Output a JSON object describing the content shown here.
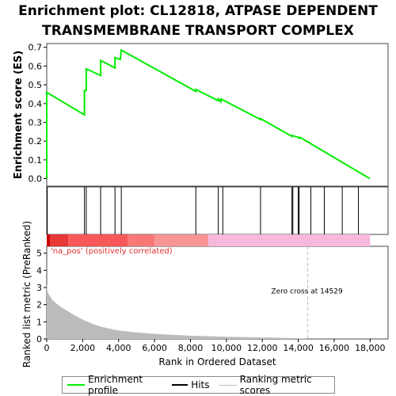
{
  "title_lines": [
    "Enrichment plot: CL12818, ATPASE DEPENDENT",
    "TRANSMEMBRANE TRANSPORT COMPLEX"
  ],
  "colors": {
    "es_line": "#00ee00",
    "hits": "#000000",
    "metric_fill": "#bbbbbb",
    "pos_label": "#e03030",
    "zero_cross_line": "#bbbbbb"
  },
  "chart_data": [
    {
      "type": "line",
      "name": "enrichment-profile",
      "ylabel": "Enrichment score (ES)",
      "xlim": [
        0,
        19000
      ],
      "ylim": [
        -0.04,
        0.72
      ],
      "yticks": [
        0.0,
        0.1,
        0.2,
        0.3,
        0.4,
        0.5,
        0.6,
        0.7
      ],
      "ytick_labels": [
        "0.0",
        "0.1",
        "0.2",
        "0.3",
        "0.4",
        "0.5",
        "0.6",
        "0.7"
      ],
      "x": [
        0,
        0,
        2100,
        2100,
        2200,
        2200,
        3000,
        3000,
        3800,
        3800,
        4100,
        4150,
        8300,
        8300,
        9550,
        9550,
        9700,
        9700,
        9800,
        9800,
        11900,
        11900,
        13650,
        13650,
        14000,
        14050,
        14100,
        17980
      ],
      "y": [
        0.0,
        0.46,
        0.34,
        0.47,
        0.47,
        0.585,
        0.55,
        0.63,
        0.59,
        0.645,
        0.635,
        0.685,
        0.465,
        0.475,
        0.415,
        0.425,
        0.41,
        0.425,
        0.42,
        0.42,
        0.315,
        0.32,
        0.225,
        0.23,
        0.22,
        0.215,
        0.22,
        0.0
      ]
    },
    {
      "type": "scatter",
      "name": "hits",
      "x": [
        30,
        2100,
        2200,
        3000,
        3800,
        4150,
        8300,
        9550,
        9800,
        11900,
        13650,
        13700,
        14000,
        14050,
        14700,
        15450,
        16450,
        17350
      ]
    },
    {
      "type": "heatmap",
      "name": "rank-colorbar",
      "segments": [
        {
          "start": 0,
          "end": 180,
          "color": "#cc0000"
        },
        {
          "start": 180,
          "end": 1200,
          "color": "#e83838"
        },
        {
          "start": 1200,
          "end": 4500,
          "color": "#f85858"
        },
        {
          "start": 4500,
          "end": 6000,
          "color": "#f87878"
        },
        {
          "start": 6000,
          "end": 9000,
          "color": "#f89494"
        },
        {
          "start": 9000,
          "end": 18000,
          "color": "#f8b8dc"
        }
      ]
    },
    {
      "type": "area",
      "name": "ranked-metric",
      "xlabel": "Rank in Ordered Dataset",
      "ylabel": "Ranked list metric (PreRanked)",
      "xlim": [
        0,
        19000
      ],
      "ylim": [
        0,
        5.4
      ],
      "yticks": [
        0,
        1,
        2,
        3,
        4,
        5
      ],
      "ytick_labels": [
        "0",
        "1",
        "2",
        "3",
        "4",
        "5"
      ],
      "xticks": [
        0,
        2000,
        4000,
        6000,
        8000,
        10000,
        12000,
        14000,
        16000,
        18000
      ],
      "xtick_labels": [
        "0",
        "2,000",
        "4,000",
        "6,000",
        "8,000",
        "10,000",
        "12,000",
        "14,000",
        "16,000",
        "18,000"
      ],
      "x": [
        0,
        40,
        150,
        300,
        500,
        800,
        1200,
        1600,
        2000,
        2500,
        3000,
        3500,
        4000,
        5000,
        6000,
        7000,
        8000,
        9000,
        10000,
        11000,
        12000,
        13000,
        14000,
        14529,
        15000,
        18000
      ],
      "y": [
        3.3,
        2.75,
        2.55,
        2.3,
        2.1,
        1.85,
        1.6,
        1.35,
        1.13,
        0.9,
        0.72,
        0.6,
        0.5,
        0.38,
        0.3,
        0.24,
        0.19,
        0.16,
        0.13,
        0.11,
        0.09,
        0.07,
        0.04,
        0.0,
        0.0,
        0.0
      ],
      "annotations": {
        "pos_label": "'na_pos' (positively correlated)",
        "zero_cross_label": "Zero cross at 14529",
        "zero_cross_x": 14529
      }
    }
  ],
  "legend": {
    "items": [
      {
        "label": "Enrichment profile"
      },
      {
        "label": "Hits"
      },
      {
        "label": "Ranking metric scores"
      }
    ]
  }
}
